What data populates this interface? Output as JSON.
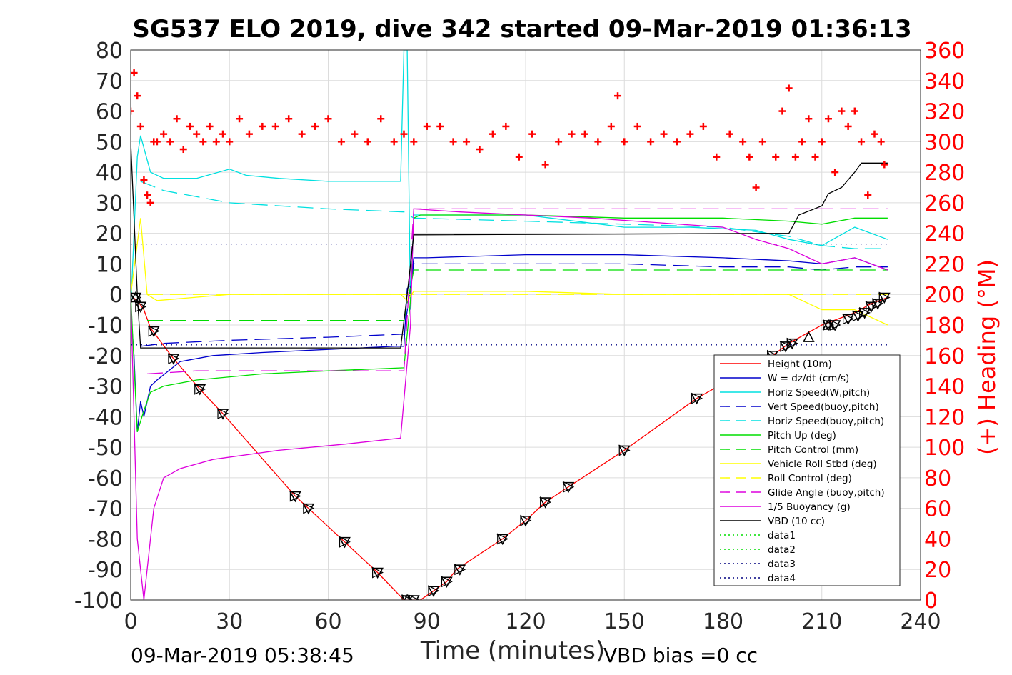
{
  "chart_data": {
    "type": "line",
    "title": "SG537 ELO 2019, dive 342 started 09-Mar-2019 01:36:13",
    "xlabel": "Time (minutes)",
    "ylabel_right": "(+) Heading (°M)",
    "footer_left": "09-Mar-2019 05:38:45",
    "footer_right": "VBD bias =0 cc",
    "xlim": [
      0,
      240
    ],
    "ylim": [
      -100,
      80
    ],
    "ylim_right": [
      0,
      360
    ],
    "x_ticks": [
      "0",
      "30",
      "60",
      "90",
      "120",
      "150",
      "180",
      "210",
      "240"
    ],
    "y_ticks": [
      "80",
      "70",
      "60",
      "50",
      "40",
      "30",
      "20",
      "10",
      "0",
      "-10",
      "-20",
      "-30",
      "-40",
      "-50",
      "-60",
      "-70",
      "-80",
      "-90",
      "-100"
    ],
    "y_ticks_right": [
      "360",
      "340",
      "320",
      "300",
      "280",
      "260",
      "240",
      "220",
      "200",
      "180",
      "160",
      "140",
      "120",
      "100",
      "80",
      "60",
      "40",
      "20",
      "0"
    ],
    "grid": true,
    "legend_position": "bottom-right",
    "series": [
      {
        "name": "Height (10m)",
        "color": "#ff0000",
        "style": "solid",
        "x": [
          0,
          2,
          4,
          6,
          13,
          21,
          28,
          50,
          54,
          65,
          75,
          83,
          85,
          88,
          92,
          96,
          99,
          113,
          120,
          126,
          133,
          150,
          172,
          190,
          195,
          200,
          210,
          215,
          220,
          225,
          230
        ],
        "y": [
          -0.5,
          -2,
          -5,
          -11,
          -21,
          -31,
          -39,
          -66,
          -70,
          -81,
          -91,
          -100,
          -100,
          -100,
          -97,
          -94,
          -90,
          -80,
          -74,
          -68,
          -63,
          -51,
          -34,
          -23,
          -20,
          -16,
          -10,
          -8,
          -6,
          -3,
          -1
        ]
      },
      {
        "name": "W = dz/dt (cm/s)",
        "color": "#0000cc",
        "style": "solid",
        "x": [
          0,
          1,
          2,
          3,
          4,
          6,
          8,
          15,
          25,
          40,
          60,
          80,
          83,
          84,
          85,
          86,
          90,
          120,
          150,
          180,
          200,
          210,
          220,
          230
        ],
        "y": [
          -5,
          -20,
          -45,
          -35,
          -40,
          -30,
          -28,
          -22,
          -20,
          -19,
          -18,
          -17,
          -17,
          2,
          3,
          12,
          12,
          13,
          13,
          12,
          11,
          10,
          12,
          8
        ]
      },
      {
        "name": "Horiz Speed(W,pitch)",
        "color": "#00e0e0",
        "style": "solid",
        "x": [
          0,
          2,
          3,
          4,
          6,
          10,
          20,
          30,
          35,
          45,
          60,
          80,
          82,
          83,
          84,
          85,
          86,
          88,
          100,
          120,
          150,
          170,
          190,
          200,
          210,
          220,
          230
        ],
        "y": [
          -5,
          45,
          52,
          48,
          40,
          38,
          38,
          41,
          39,
          38,
          37,
          37,
          37,
          80,
          80,
          -5,
          26,
          26,
          26,
          26,
          22,
          22,
          21,
          18,
          16,
          22,
          18
        ]
      },
      {
        "name": "Vert Speed(buoy,pitch)",
        "color": "#0000cc",
        "style": "dashed",
        "x": [
          3,
          10,
          30,
          60,
          83,
          86,
          120,
          150,
          180,
          200,
          210,
          220,
          230
        ],
        "y": [
          -17,
          -16,
          -15,
          -14,
          -13,
          10,
          10,
          10,
          9,
          9,
          8,
          9,
          9
        ]
      },
      {
        "name": "Horiz Speed(buoy,pitch)",
        "color": "#00e0e0",
        "style": "dashed",
        "x": [
          3,
          10,
          30,
          60,
          83,
          86,
          120,
          150,
          180,
          200,
          210,
          220,
          230
        ],
        "y": [
          37,
          34,
          30,
          28,
          27,
          25,
          24,
          23,
          22,
          19,
          16,
          15,
          15
        ]
      },
      {
        "name": "Pitch Up (deg)",
        "color": "#00dd00",
        "style": "solid",
        "x": [
          0,
          2,
          4,
          6,
          10,
          20,
          40,
          60,
          83,
          85,
          86,
          88,
          120,
          150,
          180,
          200,
          210,
          220,
          230
        ],
        "y": [
          0,
          -45,
          -38,
          -32,
          -30,
          -28,
          -26,
          -25,
          -24,
          -2,
          25,
          26,
          26,
          25,
          25,
          24,
          23,
          25,
          25
        ]
      },
      {
        "name": "Pitch Control (mm)",
        "color": "#00dd00",
        "style": "dashed",
        "x": [
          5,
          83,
          86,
          230
        ],
        "y": [
          -8.5,
          -8.5,
          8,
          8
        ]
      },
      {
        "name": "Vehicle Roll Stbd (deg)",
        "color": "#ffff00",
        "style": "solid",
        "x": [
          0,
          3,
          5,
          8,
          30,
          60,
          82,
          84,
          86,
          120,
          150,
          180,
          200,
          210,
          220,
          230
        ],
        "y": [
          0,
          25,
          0,
          -2,
          0,
          0,
          0,
          -2,
          1,
          1,
          0,
          0,
          0,
          -5,
          -5,
          -10
        ]
      },
      {
        "name": "Roll Control (deg)",
        "color": "#ffff00",
        "style": "dashed",
        "x": [
          5,
          83,
          86,
          230
        ],
        "y": [
          0,
          0,
          0,
          0
        ]
      },
      {
        "name": "Glide Angle (buoy,pitch)",
        "color": "#dd00dd",
        "style": "dashed",
        "x": [
          5,
          20,
          60,
          83,
          86,
          230
        ],
        "y": [
          -26,
          -25,
          -25,
          -25,
          28,
          28
        ]
      },
      {
        "name": "1/5 Buoyancy (g)",
        "color": "#dd00dd",
        "style": "solid",
        "x": [
          0,
          2,
          4,
          5,
          7,
          10,
          15,
          25,
          45,
          65,
          82,
          85,
          86,
          100,
          140,
          180,
          190,
          200,
          210,
          220,
          230
        ],
        "y": [
          0,
          -80,
          -100,
          -90,
          -70,
          -60,
          -57,
          -54,
          -51,
          -49,
          -47,
          -10,
          28,
          27,
          25,
          22,
          18,
          15,
          10,
          12,
          8
        ]
      },
      {
        "name": "VBD (10 cc)",
        "color": "#000000",
        "style": "solid",
        "x": [
          0,
          2,
          3,
          82,
          84,
          86,
          87,
          200,
          203,
          210,
          212,
          216,
          220,
          222,
          230
        ],
        "y": [
          50,
          0,
          -17.5,
          -17.5,
          0,
          19.5,
          19.5,
          20,
          26,
          29,
          33,
          35,
          40,
          43,
          43
        ]
      },
      {
        "name": "data1",
        "color": "#00dd00",
        "style": "dotted",
        "x": [],
        "y": []
      },
      {
        "name": "data2",
        "color": "#00dd00",
        "style": "dotted",
        "x": [],
        "y": []
      },
      {
        "name": "data3",
        "color": "#000080",
        "style": "dotted",
        "x": [
          0,
          230
        ],
        "y": [
          -16.5,
          -16.5
        ]
      },
      {
        "name": "data4",
        "color": "#000080",
        "style": "dotted",
        "x": [
          0,
          230
        ],
        "y": [
          16.5,
          16.5
        ]
      }
    ],
    "heading": {
      "name": "(+) Heading (°M)",
      "color": "#ff0000",
      "x": [
        0,
        1,
        2,
        3,
        4,
        5,
        6,
        7,
        8,
        10,
        12,
        14,
        16,
        18,
        20,
        22,
        24,
        26,
        28,
        30,
        33,
        36,
        40,
        44,
        48,
        52,
        56,
        60,
        64,
        68,
        72,
        76,
        80,
        83,
        86,
        90,
        94,
        98,
        102,
        106,
        110,
        114,
        118,
        122,
        126,
        130,
        134,
        138,
        142,
        146,
        148,
        150,
        154,
        158,
        162,
        166,
        170,
        174,
        178,
        182,
        186,
        188,
        190,
        192,
        196,
        198,
        200,
        202,
        204,
        206,
        208,
        210,
        212,
        214,
        216,
        218,
        220,
        222,
        224,
        226,
        228,
        229
      ],
      "y": [
        320,
        345,
        330,
        310,
        275,
        265,
        260,
        300,
        300,
        305,
        300,
        315,
        295,
        310,
        305,
        300,
        310,
        300,
        305,
        300,
        315,
        305,
        310,
        310,
        315,
        305,
        310,
        315,
        300,
        305,
        300,
        315,
        300,
        305,
        300,
        310,
        310,
        300,
        300,
        295,
        305,
        310,
        290,
        305,
        285,
        300,
        305,
        305,
        300,
        310,
        330,
        300,
        310,
        300,
        305,
        300,
        305,
        310,
        290,
        305,
        300,
        290,
        270,
        300,
        290,
        320,
        335,
        290,
        300,
        315,
        290,
        300,
        315,
        280,
        320,
        310,
        320,
        300,
        265,
        305,
        300,
        285
      ]
    },
    "markers": {
      "down_triangle_x": [
        1.5,
        3,
        7,
        13,
        21,
        28,
        50,
        54,
        65,
        75,
        84,
        86,
        92,
        96,
        100,
        113,
        120,
        126,
        133,
        150,
        172,
        195,
        199,
        201,
        212,
        214,
        218,
        221,
        223,
        225,
        227,
        229
      ],
      "down_triangle_y": [
        -1,
        -4,
        -12,
        -21,
        -31,
        -39,
        -66,
        -70,
        -81,
        -91,
        -100,
        -100,
        -97,
        -94,
        -90,
        -80,
        -74,
        -68,
        -63,
        -51,
        -34,
        -20,
        -17,
        -16,
        -10,
        -10,
        -8,
        -7,
        -6,
        -4,
        -3,
        -1
      ],
      "up_triangle_x": [
        1.5,
        84,
        206,
        212
      ],
      "up_triangle_y": [
        -1,
        -100,
        -14,
        -10
      ]
    }
  }
}
